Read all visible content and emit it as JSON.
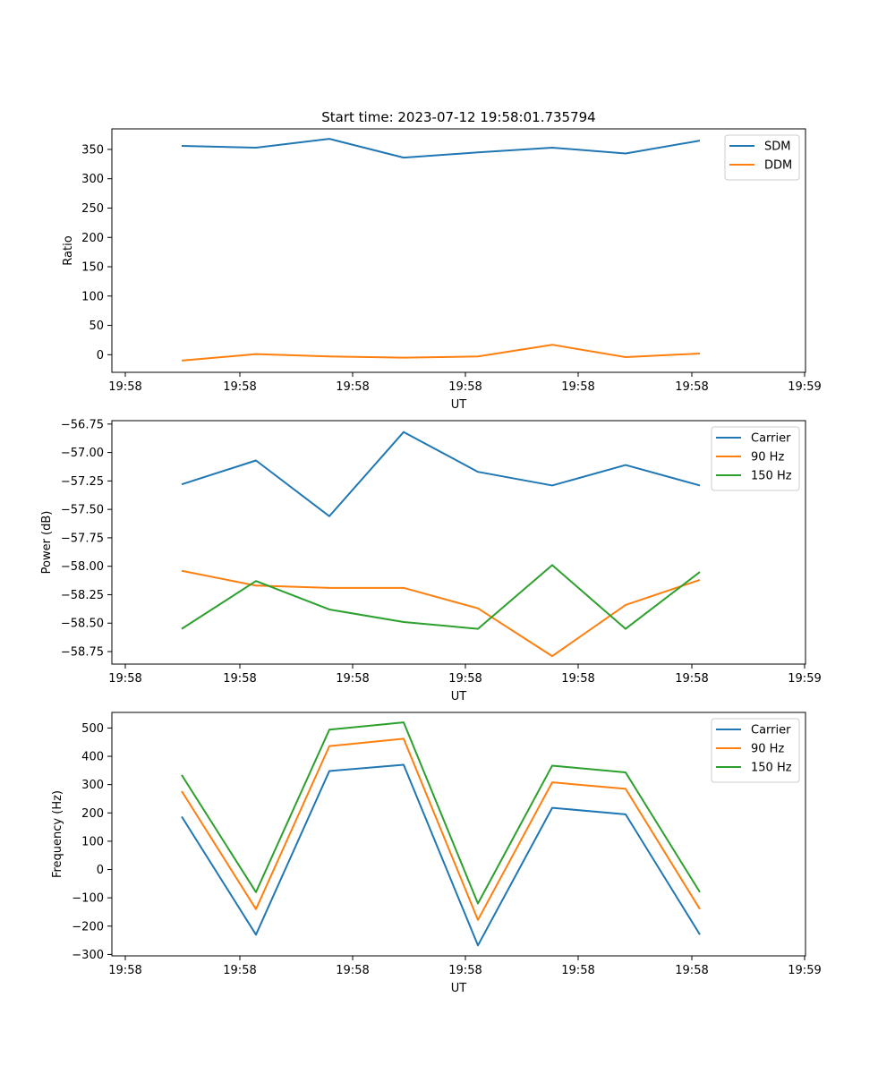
{
  "figure_title": "Start time: 2023-07-12 19:58:01.735794",
  "chart_data": [
    {
      "type": "line",
      "xlabel": "UT",
      "ylabel": "Ratio",
      "x_ticks": [
        "19:58",
        "19:58",
        "19:58",
        "19:58",
        "19:58",
        "19:58",
        "19:59"
      ],
      "y_ticks": [
        "0",
        "50",
        "100",
        "150",
        "200",
        "250",
        "300",
        "350"
      ],
      "ylim": [
        -30,
        385
      ],
      "legend_position": "upper-right",
      "series": [
        {
          "name": "SDM",
          "color": "#1f77b4",
          "values": [
            356,
            353,
            368,
            336,
            345,
            353,
            343,
            365
          ]
        },
        {
          "name": "DDM",
          "color": "#ff7f0e",
          "values": [
            -10,
            1,
            -3,
            -5,
            -3,
            17,
            -4,
            2
          ]
        }
      ]
    },
    {
      "type": "line",
      "xlabel": "UT",
      "ylabel": "Power (dB)",
      "x_ticks": [
        "19:58",
        "19:58",
        "19:58",
        "19:58",
        "19:58",
        "19:58",
        "19:59"
      ],
      "y_ticks": [
        "−58.75",
        "−58.50",
        "−58.25",
        "−58.00",
        "−57.75",
        "−57.50",
        "−57.25",
        "−57.00",
        "−56.75"
      ],
      "ylim": [
        -58.86,
        -56.72
      ],
      "legend_position": "upper-right",
      "series": [
        {
          "name": "Carrier",
          "color": "#1f77b4",
          "values": [
            -57.28,
            -57.07,
            -57.56,
            -56.82,
            -57.17,
            -57.29,
            -57.11,
            -57.29
          ]
        },
        {
          "name": "90 Hz",
          "color": "#ff7f0e",
          "values": [
            -58.04,
            -58.17,
            -58.19,
            -58.19,
            -58.37,
            -58.79,
            -58.34,
            -58.12
          ]
        },
        {
          "name": "150 Hz",
          "color": "#2ca02c",
          "values": [
            -58.55,
            -58.13,
            -58.38,
            -58.49,
            -58.55,
            -57.99,
            -58.55,
            -58.05
          ]
        }
      ]
    },
    {
      "type": "line",
      "xlabel": "UT",
      "ylabel": "Frequency (Hz)",
      "x_ticks": [
        "19:58",
        "19:58",
        "19:58",
        "19:58",
        "19:58",
        "19:58",
        "19:59"
      ],
      "y_ticks": [
        "−300",
        "−200",
        "−100",
        "0",
        "100",
        "200",
        "300",
        "400",
        "500"
      ],
      "ylim": [
        -305,
        555
      ],
      "legend_position": "upper-right",
      "series": [
        {
          "name": "Carrier",
          "color": "#1f77b4",
          "values": [
            187,
            -230,
            348,
            370,
            -268,
            218,
            195,
            -230
          ]
        },
        {
          "name": "90 Hz",
          "color": "#ff7f0e",
          "values": [
            277,
            -140,
            436,
            462,
            -178,
            308,
            285,
            -140
          ]
        },
        {
          "name": "150 Hz",
          "color": "#2ca02c",
          "values": [
            334,
            -80,
            494,
            520,
            -120,
            367,
            343,
            -80
          ]
        }
      ]
    }
  ]
}
